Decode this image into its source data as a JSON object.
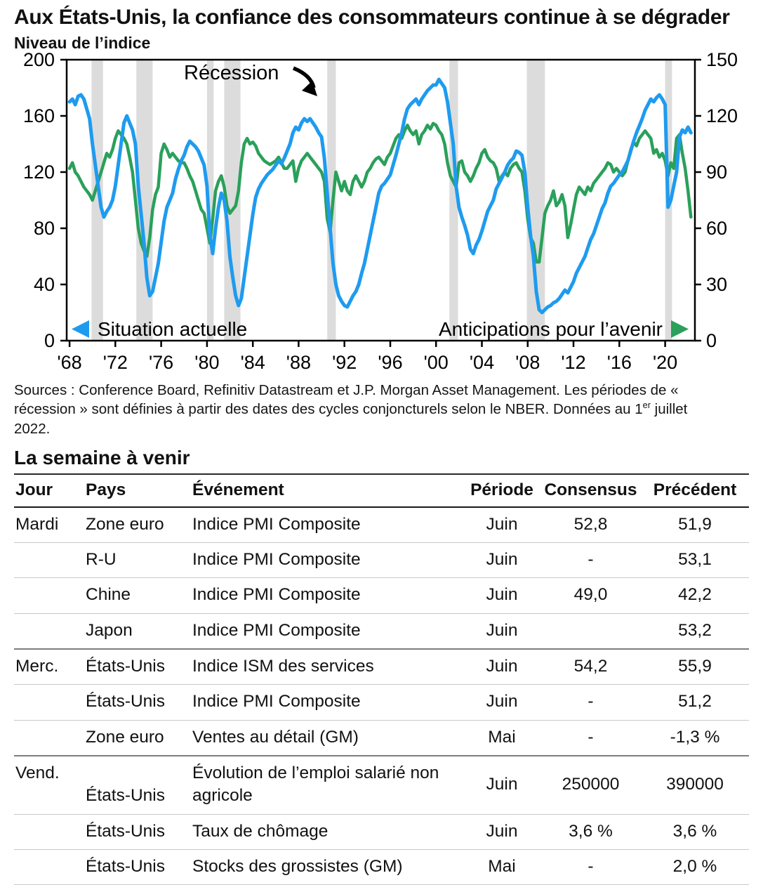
{
  "header": {
    "title": "Aux États-Unis, la confiance des consommateurs continue à se dégrader",
    "subtitle": "Niveau de l’indice"
  },
  "chart_data": {
    "type": "line",
    "title": "Aux États-Unis, la confiance des consommateurs continue à se dégrader",
    "ylabel_note": "Niveau de l’indice",
    "x_start": 1968.0,
    "x_step": 0.25,
    "x_range": [
      1967.75,
      2022.6
    ],
    "x_ticks": [
      1968,
      1972,
      1976,
      1980,
      1984,
      1988,
      1992,
      1996,
      2000,
      2004,
      2008,
      2012,
      2016,
      2020
    ],
    "x_tick_labels": [
      "'68",
      "'72",
      "'76",
      "'80",
      "'84",
      "'88",
      "'92",
      "'96",
      "'00",
      "'04",
      "'08",
      "'12",
      "'16",
      "'20"
    ],
    "left_axis": {
      "range": [
        0,
        200
      ],
      "ticks": [
        0,
        40,
        80,
        120,
        160,
        200
      ]
    },
    "right_axis": {
      "range": [
        0,
        150
      ],
      "ticks": [
        0,
        30,
        60,
        90,
        120,
        150
      ]
    },
    "grid": false,
    "colors": {
      "recession_band": "#dcdcdc",
      "frame": "#000000"
    },
    "annotation": {
      "label": "Récession"
    },
    "recessions": [
      [
        1969.92,
        1970.92
      ],
      [
        1973.83,
        1975.25
      ],
      [
        1980.0,
        1980.58
      ],
      [
        1981.5,
        1982.92
      ],
      [
        1990.5,
        1991.25
      ],
      [
        2001.17,
        2001.92
      ],
      [
        2007.92,
        2009.5
      ],
      [
        2020.0,
        2020.6
      ]
    ],
    "series": [
      {
        "name": "Situation actuelle",
        "axis": "left",
        "color": "#1e9bef",
        "values": [
          170,
          172,
          168,
          174,
          175,
          172,
          165,
          158,
          140,
          125,
          110,
          95,
          88,
          92,
          95,
          100,
          110,
          125,
          140,
          155,
          160,
          155,
          150,
          140,
          110,
          90,
          70,
          45,
          32,
          35,
          45,
          55,
          70,
          85,
          95,
          100,
          105,
          115,
          122,
          128,
          132,
          138,
          142,
          140,
          138,
          135,
          130,
          125,
          110,
          75,
          62,
          80,
          95,
          105,
          100,
          85,
          60,
          45,
          32,
          25,
          30,
          45,
          60,
          75,
          90,
          102,
          108,
          112,
          115,
          118,
          120,
          122,
          125,
          128,
          126,
          130,
          135,
          140,
          148,
          152,
          150,
          155,
          158,
          156,
          158,
          155,
          152,
          148,
          145,
          130,
          105,
          80,
          55,
          40,
          32,
          28,
          25,
          24,
          28,
          32,
          35,
          40,
          48,
          55,
          65,
          75,
          85,
          95,
          105,
          110,
          112,
          115,
          118,
          125,
          132,
          140,
          148,
          158,
          165,
          168,
          170,
          172,
          168,
          172,
          175,
          178,
          180,
          182,
          182,
          186,
          183,
          180,
          170,
          155,
          140,
          110,
          95,
          88,
          82,
          75,
          65,
          62,
          68,
          72,
          78,
          85,
          92,
          96,
          100,
          108,
          112,
          116,
          120,
          125,
          128,
          130,
          135,
          134,
          132,
          120,
          95,
          75,
          60,
          35,
          22,
          20,
          22,
          24,
          25,
          27,
          28,
          30,
          33,
          36,
          34,
          38,
          42,
          48,
          52,
          56,
          60,
          66,
          72,
          76,
          82,
          88,
          94,
          98,
          105,
          110,
          112,
          115,
          118,
          120,
          124,
          128,
          135,
          142,
          148,
          153,
          158,
          164,
          168,
          172,
          170,
          173,
          175,
          172,
          168,
          95,
          100,
          110,
          120,
          145,
          150,
          148,
          152,
          148
        ]
      },
      {
        "name": "Anticipations pour l’avenir",
        "axis": "right",
        "color": "#2aa05a",
        "values": [
          92,
          95,
          90,
          88,
          85,
          82,
          80,
          78,
          75,
          80,
          85,
          90,
          95,
          100,
          98,
          102,
          108,
          112,
          110,
          108,
          105,
          98,
          90,
          75,
          60,
          52,
          48,
          45,
          55,
          70,
          78,
          82,
          100,
          105,
          102,
          98,
          100,
          98,
          96,
          95,
          95,
          92,
          88,
          85,
          80,
          75,
          70,
          68,
          60,
          52,
          65,
          80,
          85,
          88,
          82,
          72,
          68,
          70,
          72,
          80,
          95,
          105,
          108,
          105,
          106,
          104,
          100,
          98,
          96,
          95,
          94,
          95,
          96,
          98,
          95,
          92,
          92,
          94,
          96,
          85,
          92,
          96,
          98,
          100,
          98,
          96,
          94,
          92,
          90,
          85,
          65,
          58,
          75,
          90,
          85,
          80,
          85,
          80,
          78,
          85,
          88,
          85,
          82,
          85,
          90,
          92,
          95,
          97,
          98,
          96,
          94,
          98,
          100,
          104,
          108,
          110,
          108,
          112,
          115,
          112,
          110,
          112,
          105,
          110,
          112,
          115,
          113,
          116,
          115,
          112,
          110,
          105,
          95,
          88,
          85,
          82,
          95,
          96,
          90,
          88,
          85,
          88,
          92,
          95,
          100,
          102,
          98,
          96,
          95,
          92,
          85,
          88,
          90,
          88,
          92,
          94,
          95,
          92,
          90,
          80,
          65,
          55,
          52,
          42,
          42,
          55,
          68,
          72,
          75,
          80,
          72,
          74,
          78,
          72,
          55,
          62,
          70,
          78,
          82,
          80,
          78,
          82,
          80,
          84,
          86,
          88,
          90,
          92,
          95,
          94,
          90,
          92,
          90,
          88,
          90,
          96,
          102,
          106,
          104,
          108,
          110,
          112,
          110,
          108,
          100,
          102,
          98,
          100,
          96,
          88,
          95,
          92,
          108,
          110,
          100,
          92,
          80,
          66
        ]
      }
    ],
    "legend": {
      "left": "Situation actuelle",
      "right": "Anticipations pour l’avenir",
      "position": "inside-bottom"
    }
  },
  "source": {
    "part1": "Sources : Conference Board, Refinitiv Datastream et J.P. Morgan Asset Management. Les périodes de « récession » sont définies à partir des dates des cycles conjoncturels selon le NBER. Données au 1",
    "sup": "er",
    "part2": " juillet 2022."
  },
  "week_ahead": {
    "title": "La semaine à venir",
    "headers": [
      "Jour",
      "Pays",
      "Événement",
      "Période",
      "Consensus",
      "Précédent"
    ],
    "rows": [
      {
        "day": "Mardi",
        "country": "Zone euro",
        "event": "Indice PMI Composite",
        "period": "Juin",
        "consensus": "52,8",
        "previous": "51,9"
      },
      {
        "day": "",
        "country": "R-U",
        "event": "Indice PMI Composite",
        "period": "Juin",
        "consensus": "-",
        "previous": "53,1"
      },
      {
        "day": "",
        "country": "Chine",
        "event": "Indice PMI Composite",
        "period": "Juin",
        "consensus": "49,0",
        "previous": "42,2"
      },
      {
        "day": "",
        "country": "Japon",
        "event": "Indice PMI Composite",
        "period": "Juin",
        "consensus": "",
        "previous": "53,2"
      },
      {
        "day": "Merc.",
        "country": "États-Unis",
        "event": "Indice ISM des services",
        "period": "Juin",
        "consensus": "54,2",
        "previous": "55,9"
      },
      {
        "day": "",
        "country": "États-Unis",
        "event": "Indice PMI Composite",
        "period": "Juin",
        "consensus": "-",
        "previous": "51,2"
      },
      {
        "day": "",
        "country": "Zone euro",
        "event": "Ventes au détail (GM)",
        "period": "Mai",
        "consensus": "-",
        "previous": "-1,3 %"
      },
      {
        "day": "Vend.",
        "country": "États-Unis",
        "event": "Évolution de l’emploi salarié non agricole",
        "period": "Juin",
        "consensus": "250000",
        "previous": "390000"
      },
      {
        "day": "",
        "country": "États-Unis",
        "event": "Taux de chômage",
        "period": "Juin",
        "consensus": "3,6 %",
        "previous": "3,6 %"
      },
      {
        "day": "",
        "country": "États-Unis",
        "event": "Stocks des grossistes (GM)",
        "period": "Mai",
        "consensus": "-",
        "previous": "2,0 %"
      }
    ]
  }
}
